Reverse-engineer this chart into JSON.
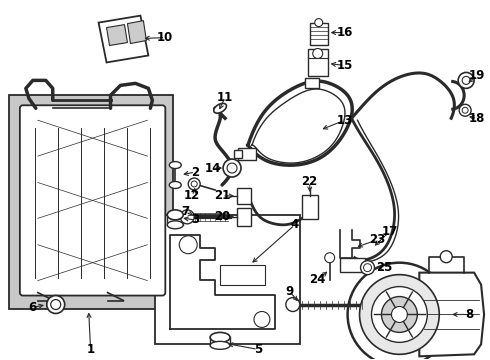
{
  "bg_color": "#ffffff",
  "line_color": "#2a2a2a",
  "gray_fill": "#c8c8c8",
  "label_color": "#000000",
  "figsize": [
    4.9,
    3.6
  ],
  "dpi": 100,
  "xlim": [
    0,
    490
  ],
  "ylim": [
    0,
    360
  ]
}
